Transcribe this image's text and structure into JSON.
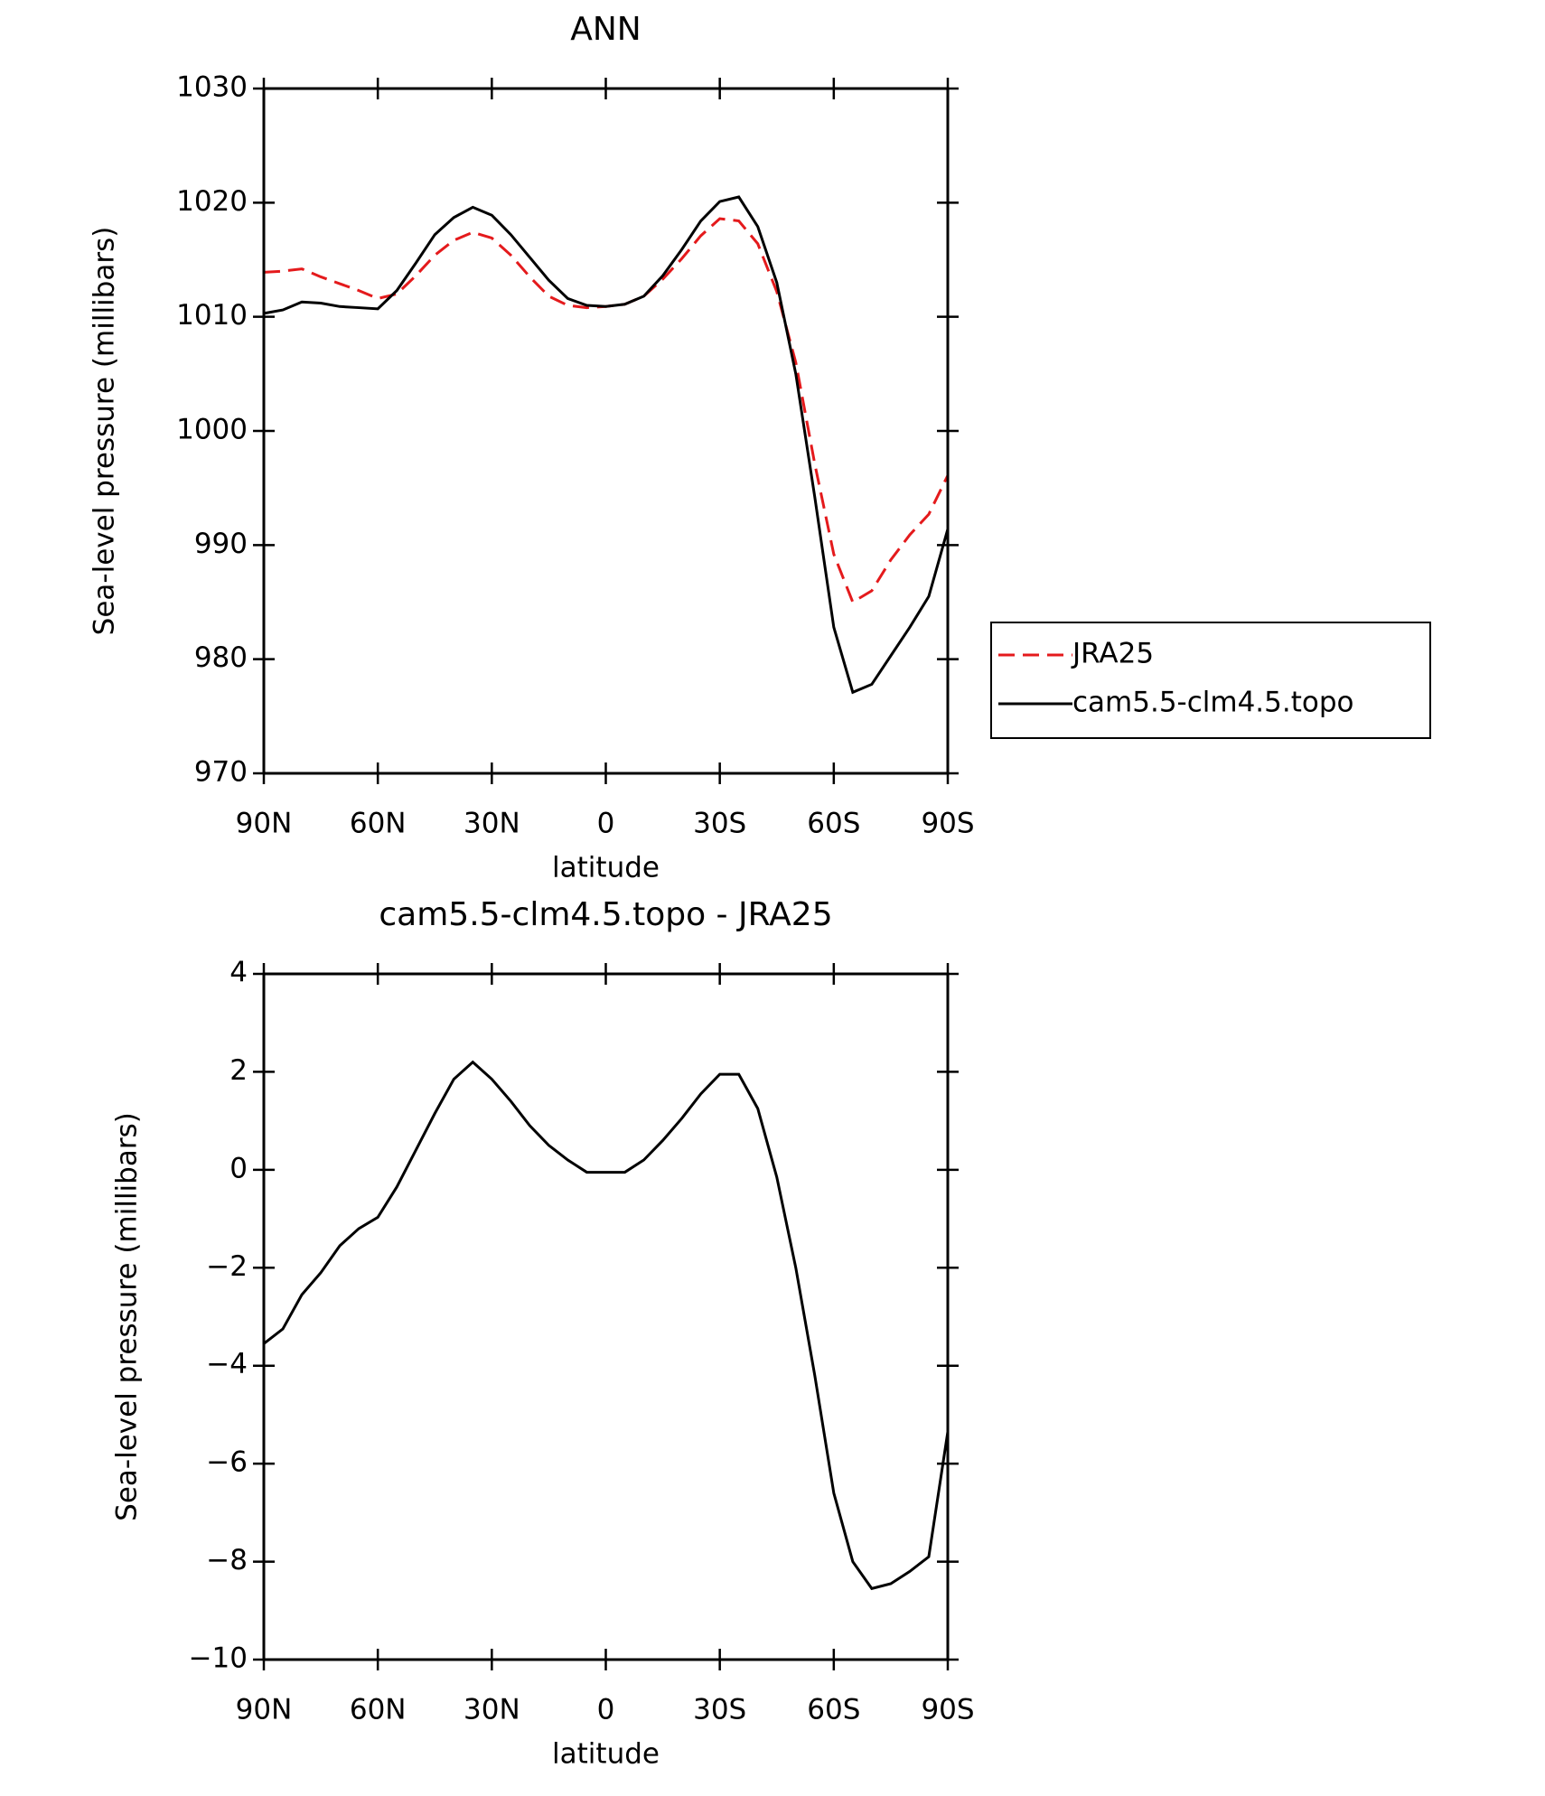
{
  "chart_data": [
    {
      "type": "line",
      "title": "ANN",
      "xlabel": "latitude",
      "ylabel": "Sea-level pressure (millibars)",
      "x": [
        90,
        85,
        80,
        75,
        70,
        65,
        60,
        55,
        50,
        45,
        40,
        35,
        30,
        25,
        20,
        15,
        10,
        5,
        0,
        -5,
        -10,
        -15,
        -20,
        -25,
        -30,
        -35,
        -40,
        -45,
        -50,
        -55,
        -60,
        -65,
        -70,
        -75,
        -80,
        -85,
        -90
      ],
      "series": [
        {
          "name": "JRA25",
          "color": "#e41a1c",
          "dashed": true,
          "values": [
            1013.9,
            1014.0,
            1014.2,
            1013.5,
            1012.9,
            1012.3,
            1011.6,
            1012.0,
            1013.6,
            1015.4,
            1016.7,
            1017.4,
            1016.9,
            1015.4,
            1013.5,
            1011.8,
            1011.0,
            1010.8,
            1010.9,
            1011.1,
            1011.8,
            1013.3,
            1015.1,
            1017.1,
            1018.6,
            1018.4,
            1016.4,
            1012.2,
            1006.0,
            997.1,
            989.2,
            985.0,
            986.0,
            988.7,
            990.9,
            992.7,
            996.1
          ]
        },
        {
          "name": "cam5.5-clm4.5.topo",
          "color": "#000000",
          "dashed": false,
          "values": [
            1010.3,
            1010.6,
            1011.3,
            1011.2,
            1010.9,
            1010.8,
            1010.7,
            1012.3,
            1014.7,
            1017.2,
            1018.7,
            1019.6,
            1018.9,
            1017.2,
            1015.2,
            1013.2,
            1011.6,
            1011.0,
            1010.9,
            1011.1,
            1011.8,
            1013.6,
            1015.9,
            1018.4,
            1020.1,
            1020.5,
            1017.9,
            1013.0,
            1005.0,
            994.2,
            982.8,
            977.1,
            977.8,
            980.3,
            982.8,
            985.5,
            991.4
          ]
        }
      ],
      "xlim": [
        90,
        -90
      ],
      "xticks": [
        {
          "value": 90,
          "label": "90N"
        },
        {
          "value": 60,
          "label": "60N"
        },
        {
          "value": 30,
          "label": "30N"
        },
        0,
        {
          "value": -30,
          "label": "30S"
        },
        {
          "value": -60,
          "label": "60S"
        },
        {
          "value": -90,
          "label": "90S"
        }
      ],
      "ylim": [
        970,
        1030
      ],
      "yticks": [
        970,
        980,
        990,
        1000,
        1010,
        1020,
        1030
      ],
      "legend": "right"
    },
    {
      "type": "line",
      "title": "cam5.5-clm4.5.topo - JRA25",
      "xlabel": "latitude",
      "ylabel": "Sea-level pressure (millibars)",
      "x": [
        90,
        85,
        80,
        75,
        70,
        65,
        60,
        55,
        50,
        45,
        40,
        35,
        30,
        25,
        20,
        15,
        10,
        5,
        0,
        -5,
        -10,
        -15,
        -20,
        -25,
        -30,
        -35,
        -40,
        -45,
        -50,
        -55,
        -60,
        -65,
        -70,
        -75,
        -80,
        -85,
        -90
      ],
      "series": [
        {
          "color": "#000000",
          "dashed": false,
          "values": [
            -3.55,
            -3.25,
            -2.55,
            -2.1,
            -1.55,
            -1.2,
            -0.97,
            -0.35,
            0.4,
            1.15,
            1.85,
            2.2,
            1.85,
            1.4,
            0.9,
            0.5,
            0.2,
            -0.05,
            -0.05,
            -0.05,
            0.2,
            0.6,
            1.05,
            1.55,
            1.95,
            1.95,
            1.25,
            -0.15,
            -2.0,
            -4.2,
            -6.6,
            -8.0,
            -8.55,
            -8.45,
            -8.2,
            -7.9,
            -5.35
          ]
        }
      ],
      "xlim": [
        90,
        -90
      ],
      "xticks": [
        {
          "value": 90,
          "label": "90N"
        },
        {
          "value": 60,
          "label": "60N"
        },
        {
          "value": 30,
          "label": "30N"
        },
        0,
        {
          "value": -30,
          "label": "30S"
        },
        {
          "value": -60,
          "label": "60S"
        },
        {
          "value": -90,
          "label": "90S"
        }
      ],
      "ylim": [
        -10,
        4
      ],
      "yticks": [
        {
          "value": -10,
          "label": "−10"
        },
        {
          "value": -8,
          "label": "−8"
        },
        {
          "value": -6,
          "label": "−6"
        },
        {
          "value": -4,
          "label": "−4"
        },
        {
          "value": -2,
          "label": "−2"
        },
        0,
        2,
        4
      ]
    }
  ]
}
